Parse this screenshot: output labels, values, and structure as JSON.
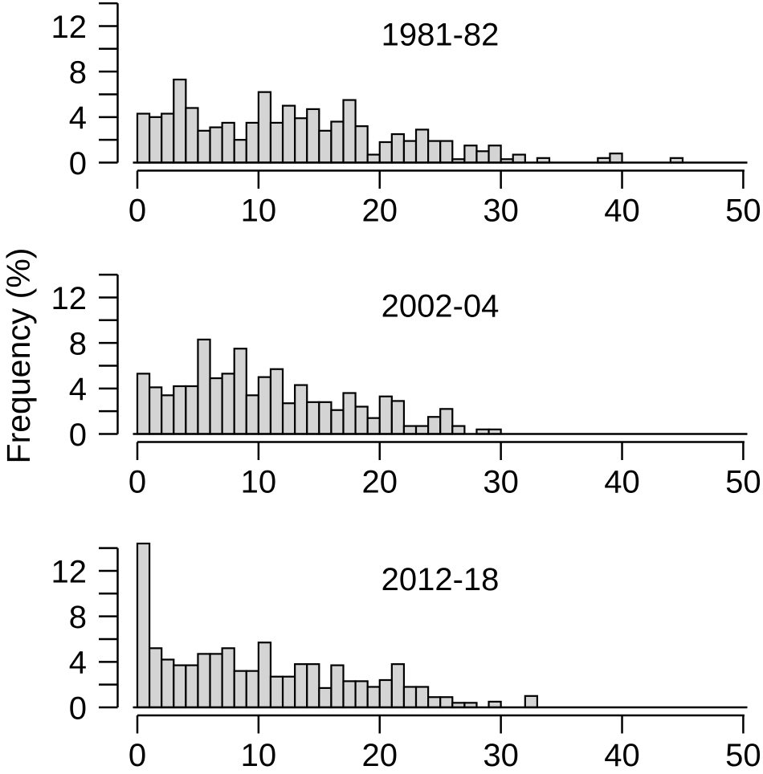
{
  "figure": {
    "ylabel": "Frequency (%)",
    "background_color": "#ffffff",
    "bar_fill_color": "#d4d4d4",
    "bar_stroke_color": "#000000",
    "axis_color": "#000000"
  },
  "chart_data": [
    {
      "type": "bar",
      "subtype": "histogram",
      "title": "1981-82",
      "xlabel": "",
      "ylabel": "Frequency (%)",
      "bin_width": 1,
      "x_start": 0,
      "xlim": [
        0,
        50
      ],
      "ylim": [
        0,
        14
      ],
      "xticks": [
        0,
        10,
        20,
        30,
        40,
        50
      ],
      "yticks_labeled": [
        0,
        4,
        8,
        12
      ],
      "ytick_minor_step": 2,
      "grid": "off",
      "values": [
        4.3,
        4.0,
        4.3,
        7.3,
        4.8,
        2.8,
        3.1,
        3.5,
        2.0,
        3.5,
        6.2,
        3.5,
        5.0,
        3.9,
        4.7,
        2.8,
        3.6,
        5.5,
        3.2,
        0.7,
        1.8,
        2.5,
        1.9,
        2.9,
        1.9,
        1.9,
        0.3,
        1.5,
        1.0,
        1.5,
        0.3,
        0.7,
        0,
        0.4,
        0,
        0,
        0,
        0,
        0.4,
        0.8,
        0,
        0,
        0,
        0,
        0.4,
        0,
        0,
        0,
        0,
        0
      ]
    },
    {
      "type": "bar",
      "subtype": "histogram",
      "title": "2002-04",
      "xlabel": "",
      "ylabel": "Frequency (%)",
      "bin_width": 1,
      "x_start": 0,
      "xlim": [
        0,
        50
      ],
      "ylim": [
        0,
        14
      ],
      "xticks": [
        0,
        10,
        20,
        30,
        40,
        50
      ],
      "yticks_labeled": [
        0,
        4,
        8,
        12
      ],
      "ytick_minor_step": 2,
      "grid": "off",
      "values": [
        5.3,
        4.1,
        3.4,
        4.2,
        4.2,
        8.3,
        4.9,
        5.3,
        7.5,
        3.4,
        5.0,
        5.7,
        2.7,
        4.3,
        2.8,
        2.8,
        2.1,
        3.6,
        2.4,
        1.4,
        3.3,
        2.9,
        0.7,
        0.7,
        1.5,
        2.2,
        0.7,
        0,
        0.4,
        0.4,
        0,
        0,
        0,
        0,
        0,
        0,
        0,
        0,
        0,
        0,
        0,
        0,
        0,
        0,
        0,
        0,
        0,
        0,
        0,
        0
      ]
    },
    {
      "type": "bar",
      "subtype": "histogram",
      "title": "2012-18",
      "xlabel": "",
      "ylabel": "Frequency (%)",
      "bin_width": 1,
      "x_start": 0,
      "xlim": [
        0,
        50
      ],
      "ylim": [
        0,
        14
      ],
      "xticks": [
        0,
        10,
        20,
        30,
        40,
        50
      ],
      "yticks_labeled": [
        0,
        4,
        8,
        12
      ],
      "ytick_minor_step": 2,
      "grid": "off",
      "values": [
        14.4,
        5.2,
        4.2,
        3.7,
        3.7,
        4.7,
        4.7,
        5.2,
        3.2,
        3.2,
        5.7,
        2.7,
        2.7,
        3.8,
        3.8,
        1.7,
        3.7,
        2.3,
        2.3,
        1.8,
        2.4,
        3.8,
        1.8,
        1.8,
        0.9,
        0.9,
        0.4,
        0.4,
        0,
        0.5,
        0,
        0,
        1.0,
        0,
        0,
        0,
        0,
        0,
        0,
        0,
        0,
        0,
        0,
        0,
        0,
        0,
        0,
        0,
        0,
        0
      ]
    }
  ]
}
